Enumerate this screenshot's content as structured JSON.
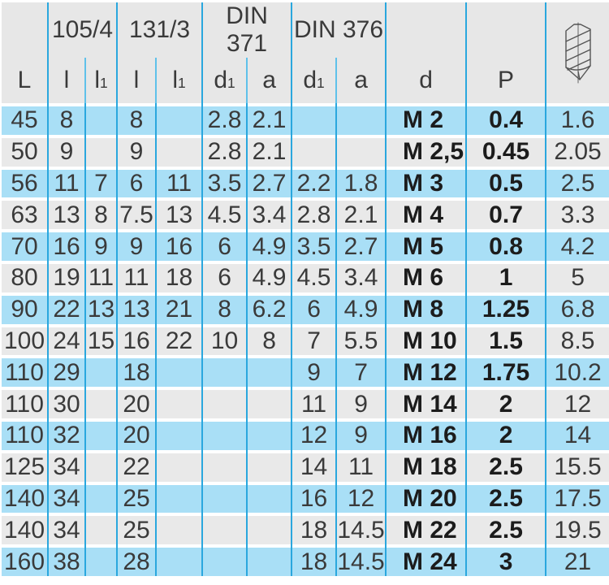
{
  "table": {
    "groups": [
      {
        "label": ""
      },
      {
        "label": "105/4"
      },
      {
        "label": "131/3"
      },
      {
        "label": "DIN 371"
      },
      {
        "label": "DIN 376"
      },
      {
        "label": ""
      },
      {
        "label": ""
      }
    ],
    "icon": "drill-bit-technical-drawing",
    "columns": [
      {
        "label": "L",
        "sub": ""
      },
      {
        "label": "l",
        "sub": ""
      },
      {
        "label": "l",
        "sub": "1"
      },
      {
        "label": "l",
        "sub": ""
      },
      {
        "label": "l",
        "sub": "1"
      },
      {
        "label": "d",
        "sub": "1"
      },
      {
        "label": "a",
        "sub": ""
      },
      {
        "label": "d",
        "sub": "1"
      },
      {
        "label": "a",
        "sub": ""
      },
      {
        "label": "d",
        "sub": ""
      },
      {
        "label": "P",
        "sub": ""
      }
    ],
    "column_keys": [
      "L",
      "l-105",
      "l1-105",
      "l-131",
      "l1-131",
      "d1-din371",
      "a-din371",
      "d1-din376",
      "a-din376",
      "d",
      "P",
      "drill-diameter"
    ],
    "rows": [
      [
        "45",
        "8",
        "",
        "8",
        "",
        "2.8",
        "2.1",
        "",
        "",
        "M 2",
        "0.4",
        "1.6"
      ],
      [
        "50",
        "9",
        "",
        "9",
        "",
        "2.8",
        "2.1",
        "",
        "",
        "M 2,5",
        "0.45",
        "2.05"
      ],
      [
        "56",
        "11",
        "7",
        "6",
        "11",
        "3.5",
        "2.7",
        "2.2",
        "1.8",
        "M 3",
        "0.5",
        "2.5"
      ],
      [
        "63",
        "13",
        "8",
        "7.5",
        "13",
        "4.5",
        "3.4",
        "2.8",
        "2.1",
        "M 4",
        "0.7",
        "3.3"
      ],
      [
        "70",
        "16",
        "9",
        "9",
        "16",
        "6",
        "4.9",
        "3.5",
        "2.7",
        "M 5",
        "0.8",
        "4.2"
      ],
      [
        "80",
        "19",
        "11",
        "11",
        "18",
        "6",
        "4.9",
        "4.5",
        "3.4",
        "M 6",
        "1",
        "5"
      ],
      [
        "90",
        "22",
        "13",
        "13",
        "21",
        "8",
        "6.2",
        "6",
        "4.9",
        "M 8",
        "1.25",
        "6.8"
      ],
      [
        "100",
        "24",
        "15",
        "16",
        "22",
        "10",
        "8",
        "7",
        "5.5",
        "M 10",
        "1.5",
        "8.5"
      ],
      [
        "110",
        "29",
        "",
        "18",
        "",
        "",
        "",
        "9",
        "7",
        "M 12",
        "1.75",
        "10.2"
      ],
      [
        "110",
        "30",
        "",
        "20",
        "",
        "",
        "",
        "11",
        "9",
        "M 14",
        "2",
        "12"
      ],
      [
        "110",
        "32",
        "",
        "20",
        "",
        "",
        "",
        "12",
        "9",
        "M 16",
        "2",
        "14"
      ],
      [
        "125",
        "34",
        "",
        "22",
        "",
        "",
        "",
        "14",
        "11",
        "M 18",
        "2.5",
        "15.5"
      ],
      [
        "140",
        "34",
        "",
        "25",
        "",
        "",
        "",
        "16",
        "12",
        "M 20",
        "2.5",
        "17.5"
      ],
      [
        "140",
        "34",
        "",
        "25",
        "",
        "",
        "",
        "18",
        "14.5",
        "M 22",
        "2.5",
        "19.5"
      ],
      [
        "160",
        "38",
        "",
        "28",
        "",
        "",
        "",
        "18",
        "14.5",
        "M 24",
        "3",
        "21"
      ]
    ]
  },
  "colors": {
    "row_blue": "#A9DFF6",
    "row_gray": "#E9E9E9",
    "header_gray": "#E7E7E7",
    "grid_line": "#2AA7DE",
    "text": "#3A3A3A",
    "text_bold": "#1C1C1C"
  }
}
